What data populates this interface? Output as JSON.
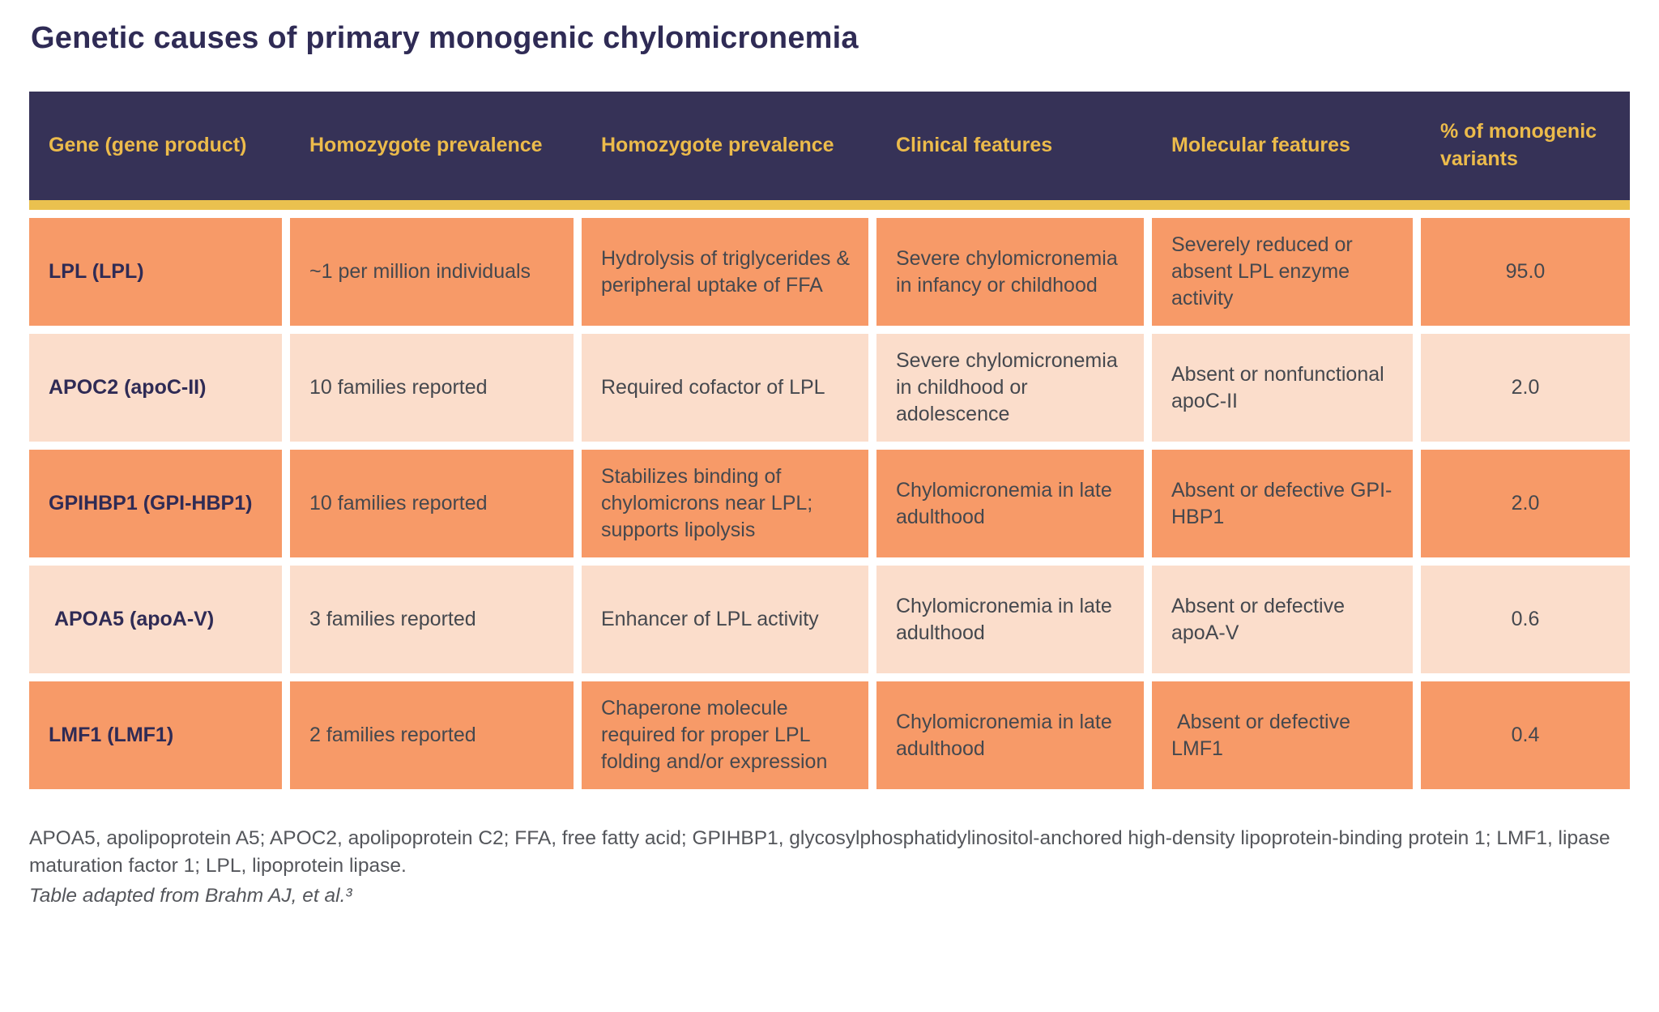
{
  "title": "Genetic causes of primary monogenic chylomicronemia",
  "colors": {
    "header_background": "#363257",
    "header_text_gold": "#ECBB4B",
    "header_underline_gold": "#EAC14F",
    "row_orange": "#F79A68",
    "row_peach": "#FBDDCB",
    "gene_text_navy": "#2F2B55",
    "body_text": "#45484E",
    "title_text": "#2F2B55",
    "footnote_text": "#54565B"
  },
  "table": {
    "headers": [
      "Gene (gene product)",
      "Homozygote prevalence",
      "Homozygote prevalence",
      "Clinical features",
      "Molecular features",
      "% of monogenic variants"
    ],
    "rows": [
      {
        "shade": "orange",
        "gene": "LPL (LPL)",
        "prevalence": "~1 per million individuals",
        "function": "Hydrolysis of triglycerides & peripheral uptake of FFA",
        "clinical": "Severe chylomicronemia in infancy or childhood",
        "molecular": "Severely reduced or absent LPL enzyme activity",
        "percent": "95.0"
      },
      {
        "shade": "peach",
        "gene": "APOC2 (apoC-II)",
        "prevalence": "10 families reported",
        "function": "Required cofactor of LPL",
        "clinical": "Severe chylomicronemia in childhood or adolescence",
        "molecular": "Absent or nonfunctional apoC-II",
        "percent": "2.0"
      },
      {
        "shade": "orange",
        "gene": "GPIHBP1 (GPI-HBP1)",
        "prevalence": "10 families reported",
        "function": "Stabilizes binding of chylomicrons near LPL; supports lipolysis",
        "clinical": "Chylomicronemia in late adulthood",
        "molecular": "Absent or defective GPI-HBP1",
        "percent": "2.0"
      },
      {
        "shade": "peach",
        "gene": " APOA5 (apoA-V)",
        "prevalence": "3 families reported",
        "function": "Enhancer of LPL activity",
        "clinical": "Chylomicronemia in late adulthood",
        "molecular": "Absent or defective apoA-V",
        "percent": "0.6"
      },
      {
        "shade": "orange",
        "gene": "LMF1 (LMF1)",
        "prevalence": "2 families reported",
        "function": "Chaperone molecule required for proper LPL folding and/or expression",
        "clinical": "Chylomicronemia in late adulthood",
        "molecular": " Absent or defective LMF1",
        "percent": "0.4"
      }
    ]
  },
  "footnotes": {
    "abbreviations": "APOA5, apolipoprotein A5; APOC2, apolipoprotein C2; FFA, free fatty acid; GPIHBP1, glycosylphosphatidylinositol-anchored high-density lipoprotein-binding protein 1; LMF1, lipase maturation factor 1; LPL, lipoprotein lipase.",
    "source": "Table adapted from Brahm AJ, et al.³"
  }
}
